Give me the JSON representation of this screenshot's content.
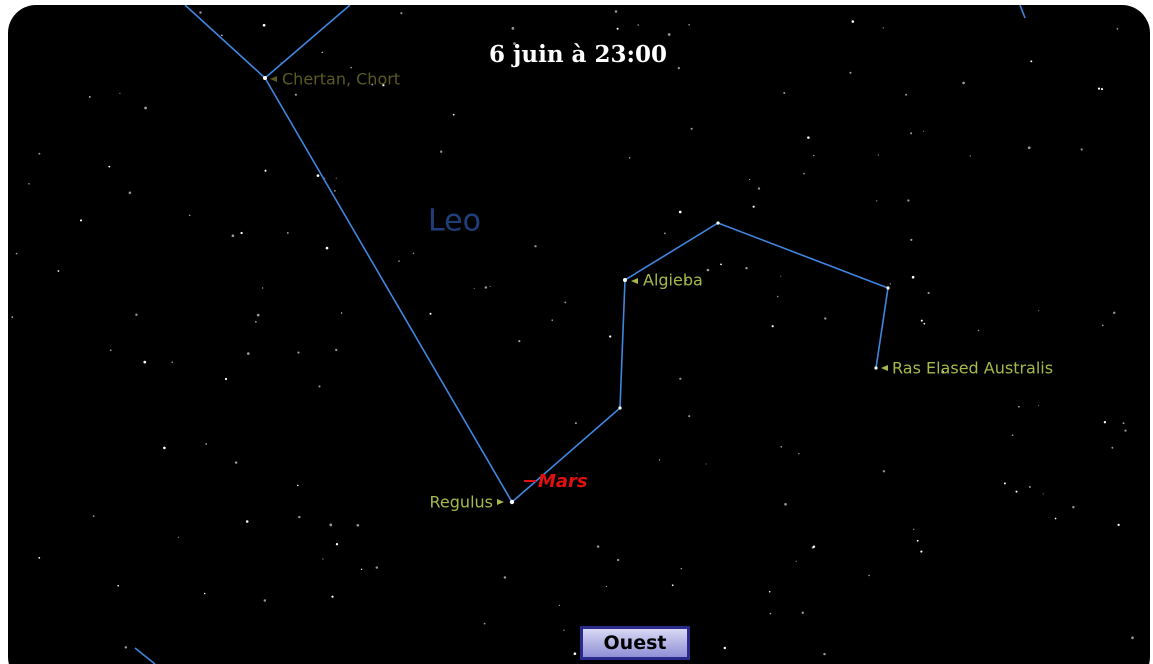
{
  "title": "6 juin à 23:00",
  "labels": {
    "chertan": "Chertan, Chort",
    "constellation": "Leo",
    "algieba": "Algieba",
    "ras_elased": "Ras Elased Australis",
    "mars": "Mars",
    "regulus": "Regulus"
  },
  "button": "Ouest"
}
